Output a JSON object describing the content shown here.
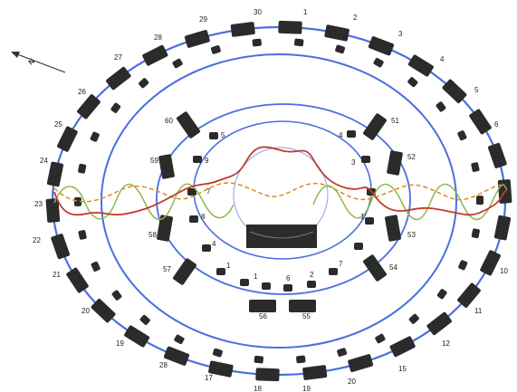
{
  "north_label": "N",
  "outer_labels": [
    {
      "id": "o1",
      "text": "30"
    },
    {
      "id": "o2",
      "text": "1"
    },
    {
      "id": "o3",
      "text": "2"
    },
    {
      "id": "o4",
      "text": "3"
    },
    {
      "id": "o5",
      "text": "4"
    },
    {
      "id": "o6",
      "text": "5"
    },
    {
      "id": "o7",
      "text": "6"
    },
    {
      "id": "o8",
      "text": "10"
    },
    {
      "id": "o9",
      "text": "11"
    },
    {
      "id": "o10",
      "text": "12"
    },
    {
      "id": "o11",
      "text": "15"
    },
    {
      "id": "o12",
      "text": "20"
    },
    {
      "id": "o13",
      "text": "19"
    },
    {
      "id": "o14",
      "text": "18"
    },
    {
      "id": "o15",
      "text": "17"
    },
    {
      "id": "o16",
      "text": "28"
    },
    {
      "id": "o17",
      "text": "19"
    },
    {
      "id": "o18",
      "text": "20"
    },
    {
      "id": "o19",
      "text": "21"
    },
    {
      "id": "o20",
      "text": "22"
    },
    {
      "id": "o21",
      "text": "23"
    },
    {
      "id": "o22",
      "text": "24"
    },
    {
      "id": "o23",
      "text": "25"
    },
    {
      "id": "o24",
      "text": "26"
    },
    {
      "id": "o25",
      "text": "27"
    },
    {
      "id": "o26",
      "text": "28"
    },
    {
      "id": "o27",
      "text": "29"
    }
  ],
  "inner_labels": [
    {
      "id": "i1",
      "text": "60"
    },
    {
      "id": "i2",
      "text": "51"
    },
    {
      "id": "i3",
      "text": "52"
    },
    {
      "id": "i4",
      "text": "53"
    },
    {
      "id": "i5",
      "text": "54"
    },
    {
      "id": "i6",
      "text": "55"
    },
    {
      "id": "i7",
      "text": "56"
    },
    {
      "id": "i8",
      "text": "57"
    },
    {
      "id": "i9",
      "text": "58"
    },
    {
      "id": "i10",
      "text": "59"
    }
  ],
  "core_labels": [
    {
      "id": "c1",
      "text": "5"
    },
    {
      "id": "c2",
      "text": "4"
    },
    {
      "id": "c3",
      "text": "9"
    },
    {
      "id": "c4",
      "text": "3"
    },
    {
      "id": "c5",
      "text": "8"
    },
    {
      "id": "c6",
      "text": "1"
    },
    {
      "id": "c7",
      "text": "4"
    },
    {
      "id": "c8",
      "text": "7"
    },
    {
      "id": "c9",
      "text": "1"
    },
    {
      "id": "c10",
      "text": "1"
    },
    {
      "id": "c11",
      "text": "6"
    },
    {
      "id": "c12",
      "text": "2"
    },
    {
      "id": "c13",
      "text": "7"
    }
  ],
  "colors": {
    "ring": "#4a6fe0",
    "ring_light": "#9fb0ef",
    "stone": "#2b2b2b",
    "red_wave": "#c0392b",
    "green_wave": "#8db84a",
    "orange_wave": "#e08a1e"
  }
}
